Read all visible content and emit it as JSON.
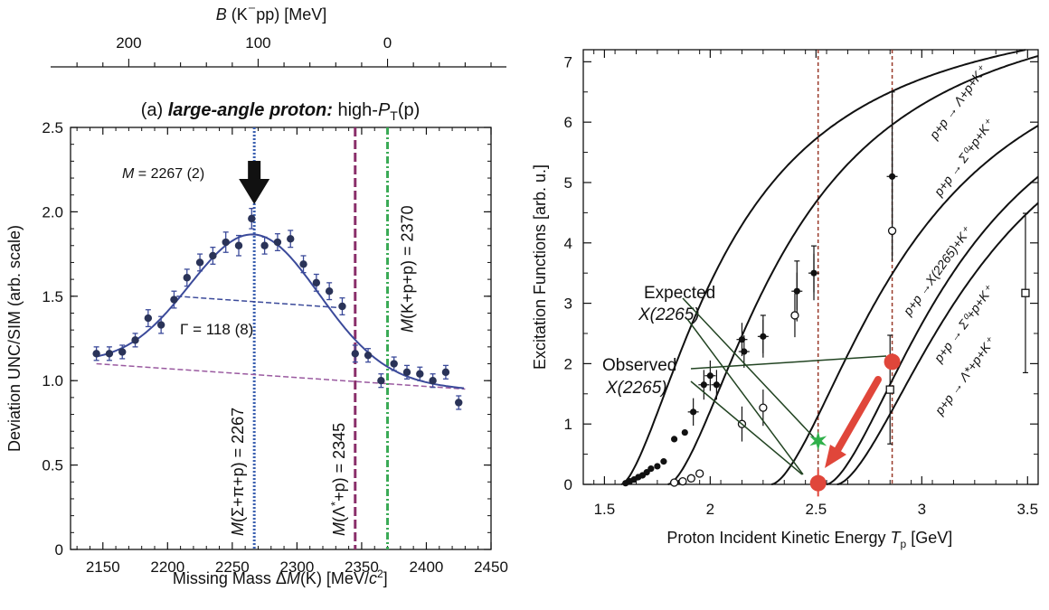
{
  "colors": {
    "data_points": "#2a3358",
    "fit_curve": "#3b4a9a",
    "blue_line": "#3a5fb0",
    "purple_line": "#8a2f6a",
    "green_line": "#3aaa55",
    "bg_purple": "#9a5aa0",
    "red": "#e0463a",
    "green_star": "#2fb04a",
    "brown_dotted": "#9a3a2a",
    "dark_green_arrow": "#224422"
  },
  "chart_data": [
    {
      "type": "scatter",
      "panel_label": "(a)",
      "title_bold": "large-angle proton:",
      "title_plain": "high-",
      "title_var": "P",
      "title_sub": "T",
      "title_tail": "(p)",
      "top_axis_title": "B (K⁻pp)  [MeV]",
      "top_axis_ticks": [
        "200",
        "100",
        "0"
      ],
      "xlabel": "Missing Mass  ΔM(K)  [MeV/c²]",
      "ylabel": "Deviation  UNC/SIM  (arb. scale)",
      "xlim": [
        2125,
        2450
      ],
      "ylim": [
        0,
        2.5
      ],
      "xticks": [
        "2150",
        "2200",
        "2250",
        "2300",
        "2350",
        "2400",
        "2450"
      ],
      "yticks": [
        "0",
        "0.5",
        "1.0",
        "1.5",
        "2.0",
        "2.5"
      ],
      "x": [
        2145,
        2155,
        2165,
        2175,
        2185,
        2195,
        2205,
        2215,
        2225,
        2235,
        2245,
        2255,
        2265,
        2275,
        2285,
        2295,
        2305,
        2315,
        2325,
        2335,
        2345,
        2355,
        2365,
        2375,
        2385,
        2395,
        2405,
        2415,
        2425
      ],
      "y": [
        1.16,
        1.16,
        1.17,
        1.24,
        1.37,
        1.33,
        1.48,
        1.61,
        1.7,
        1.74,
        1.82,
        1.8,
        1.96,
        1.8,
        1.82,
        1.84,
        1.69,
        1.58,
        1.53,
        1.44,
        1.16,
        1.15,
        1.0,
        1.1,
        1.05,
        1.04,
        1.0,
        1.05,
        0.87
      ],
      "err": [
        0.04,
        0.04,
        0.04,
        0.04,
        0.05,
        0.05,
        0.05,
        0.05,
        0.05,
        0.05,
        0.06,
        0.06,
        0.06,
        0.05,
        0.05,
        0.05,
        0.05,
        0.05,
        0.05,
        0.05,
        0.05,
        0.04,
        0.04,
        0.04,
        0.04,
        0.04,
        0.04,
        0.04,
        0.04
      ],
      "annotations": {
        "mass": "M = 2267 (2)",
        "gamma": "Γ = 118 (8)",
        "line1": "M(Σ+π+p) = 2267",
        "line2": "M(Λ*+p) = 2345",
        "line3": "M(K+p+p) = 2370"
      },
      "vlines": [
        2267,
        2345,
        2370
      ],
      "fit": {
        "peak_mass": 2267,
        "width": 118,
        "bg_start": 1.1,
        "bg_end": 0.95
      }
    },
    {
      "type": "line",
      "xlabel": "Proton Incident Kinetic Energy  T",
      "xlabel_sub": "p",
      "xlabel_unit": "[GeV]",
      "ylabel": "Excitation Functions  [arb. u.]",
      "xlim": [
        1.4,
        3.55
      ],
      "ylim": [
        0,
        7.2
      ],
      "xticks": [
        "1.5",
        "2",
        "2.5",
        "3",
        "3.5"
      ],
      "yticks": [
        "0",
        "1",
        "2",
        "3",
        "4",
        "5",
        "6",
        "7"
      ],
      "curve_labels": [
        "p+p → Λ+p+K⁺",
        "p+p → Σ⁰+p+K⁺",
        "p+p →X(2265)+K⁺",
        "p+p → Σ⁰+p+K⁺",
        "p+p → Λ*+p+K⁺"
      ],
      "thresholds": [
        1.58,
        1.8,
        2.29,
        2.55,
        2.6
      ],
      "filled_points": {
        "x": [
          1.6,
          1.62,
          1.64,
          1.66,
          1.68,
          1.7,
          1.72,
          1.75,
          1.78,
          1.83,
          1.88,
          1.92,
          1.97,
          2.0,
          2.03,
          2.15,
          2.16,
          2.25,
          2.41,
          2.49,
          2.86
        ],
        "y": [
          0.02,
          0.05,
          0.08,
          0.12,
          0.15,
          0.2,
          0.26,
          0.3,
          0.38,
          0.75,
          0.86,
          1.2,
          1.65,
          1.8,
          1.65,
          2.4,
          2.2,
          2.45,
          3.2,
          3.5,
          5.1
        ]
      },
      "open_points": {
        "x": [
          1.83,
          1.87,
          1.91,
          1.95,
          2.15,
          2.25,
          2.4,
          2.86
        ],
        "y": [
          0.03,
          0.05,
          0.1,
          0.18,
          1.0,
          1.27,
          2.8,
          4.2
        ]
      },
      "open_squares": {
        "x": [
          2.85,
          3.49
        ],
        "y": [
          1.57,
          3.17
        ]
      },
      "legend_expected": [
        "Expected",
        "X(2265)"
      ],
      "legend_observed": [
        "Observed",
        "X(2265)"
      ],
      "vlines": [
        2.51,
        2.86
      ]
    }
  ]
}
